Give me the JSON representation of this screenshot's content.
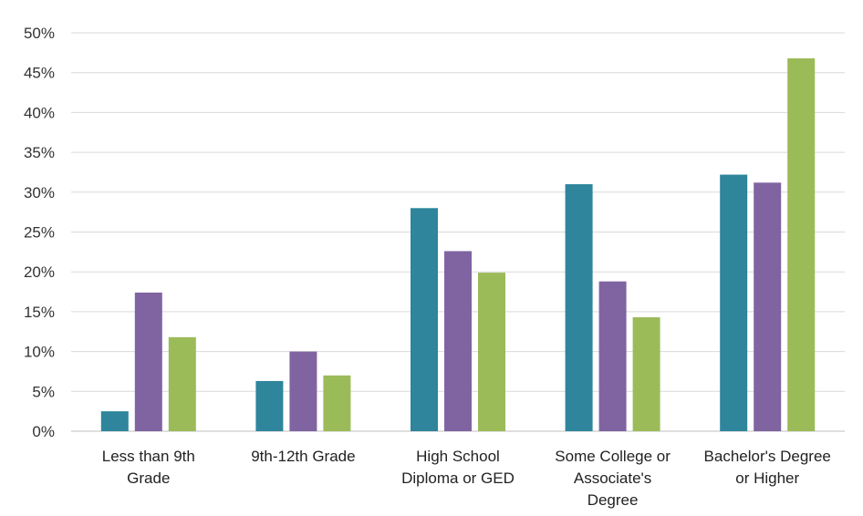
{
  "chart_data": {
    "type": "bar",
    "categories": [
      [
        "Less than 9th",
        "Grade"
      ],
      [
        "9th-12th Grade"
      ],
      [
        "High School",
        "Diploma or GED"
      ],
      [
        "Some College or",
        "Associate's",
        "Degree"
      ],
      [
        "Bachelor's Degree",
        "or Higher"
      ]
    ],
    "series": [
      {
        "color": "#2e859c",
        "values": [
          2.5,
          6.3,
          28.0,
          31.0,
          32.2
        ]
      },
      {
        "color": "#8064a2",
        "values": [
          17.4,
          10.0,
          22.6,
          18.8,
          31.2
        ]
      },
      {
        "color": "#9bbb59",
        "values": [
          11.8,
          7.0,
          19.9,
          14.3,
          46.8
        ]
      }
    ],
    "ylim": [
      0,
      50
    ],
    "yticks": [
      0,
      5,
      10,
      15,
      20,
      25,
      30,
      35,
      40,
      45,
      50
    ],
    "ytick_format": "%",
    "grid": true,
    "legend": "none",
    "title": "",
    "xlabel": "",
    "ylabel": ""
  }
}
